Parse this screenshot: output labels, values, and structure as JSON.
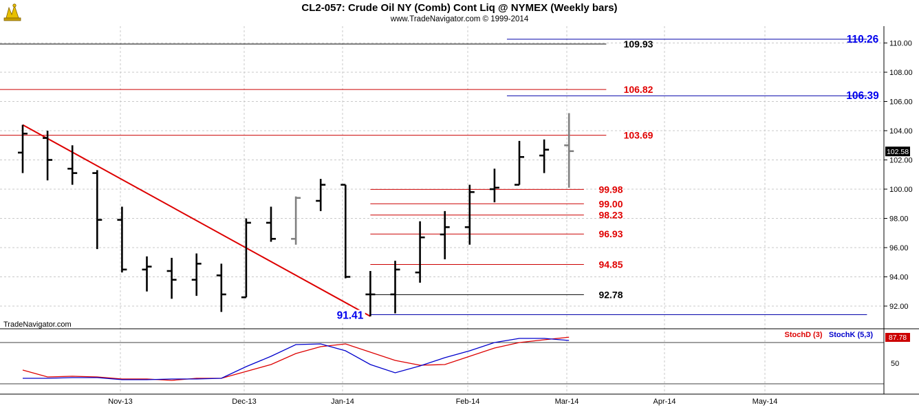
{
  "header": {
    "title": "CL2-057:  Crude Oil NY (Comb) Cont Liq @ NYMEX  (Weekly bars)",
    "subtitle": "www.TradeNavigator.com © 1999-2014",
    "watermark": "TradeNavigator.com"
  },
  "colors": {
    "bar": "#000000",
    "bar_current": "#808080",
    "fib_red": "#cc0000",
    "fib_label_red": "#e00000",
    "fib_black": "#000000",
    "fib_blue": "#0000aa",
    "label_blue": "#0000ee",
    "trendline": "#dd0000",
    "grid": "#c8c8c8",
    "stochD": "#dd0000",
    "stochK": "#0000cc",
    "last_price_bg": "#000000",
    "last_price_fg": "#ffffff"
  },
  "chart_data": [
    {
      "type": "ohlc",
      "bar_interval": "weekly",
      "x_categories": [
        "Nov-13",
        "Dec-13",
        "Jan-14",
        "Feb-14",
        "Mar-14",
        "Apr-14",
        "May-14"
      ],
      "y_ticks": [
        "92.00",
        "94.00",
        "96.00",
        "98.00",
        "100.00",
        "102.00",
        "104.00",
        "106.00",
        "108.00",
        "110.00"
      ],
      "ylim": [
        90.6,
        111.8
      ],
      "grid": true,
      "last_price": "102.58",
      "bars": [
        {
          "week": 0,
          "open": 102.5,
          "high": 104.4,
          "low": 101.1,
          "close": 103.8
        },
        {
          "week": 1,
          "open": 103.5,
          "high": 104.0,
          "low": 100.6,
          "close": 102.0
        },
        {
          "week": 2,
          "open": 101.4,
          "high": 103.0,
          "low": 100.3,
          "close": 101.1
        },
        {
          "week": 3,
          "open": 101.1,
          "high": 101.3,
          "low": 95.9,
          "close": 97.9
        },
        {
          "week": 4,
          "open": 97.9,
          "high": 98.8,
          "low": 94.3,
          "close": 94.5
        },
        {
          "week": 5,
          "open": 94.5,
          "high": 95.4,
          "low": 93.0,
          "close": 94.7
        },
        {
          "week": 6,
          "open": 94.4,
          "high": 95.3,
          "low": 92.5,
          "close": 93.8
        },
        {
          "week": 7,
          "open": 93.8,
          "high": 95.6,
          "low": 92.7,
          "close": 94.9
        },
        {
          "week": 8,
          "open": 94.1,
          "high": 94.9,
          "low": 91.6,
          "close": 92.8
        },
        {
          "week": 9,
          "open": 92.6,
          "high": 98.0,
          "low": 92.6,
          "close": 97.7
        },
        {
          "week": 10,
          "open": 97.7,
          "high": 98.8,
          "low": 96.4,
          "close": 96.6
        },
        {
          "week": 11,
          "open": 96.6,
          "high": 99.5,
          "low": 96.2,
          "close": 99.4,
          "current": true
        },
        {
          "week": 12,
          "open": 99.2,
          "high": 100.7,
          "low": 98.5,
          "close": 100.3
        },
        {
          "week": 13,
          "open": 100.3,
          "high": 100.3,
          "low": 93.9,
          "close": 94.0
        },
        {
          "week": 14,
          "open": 92.8,
          "high": 94.4,
          "low": 91.3,
          "close": 92.8
        },
        {
          "week": 15,
          "open": 92.8,
          "high": 95.1,
          "low": 91.5,
          "close": 94.5
        },
        {
          "week": 16,
          "open": 94.3,
          "high": 97.8,
          "low": 93.6,
          "close": 96.7
        },
        {
          "week": 17,
          "open": 96.9,
          "high": 98.5,
          "low": 95.2,
          "close": 97.4
        },
        {
          "week": 18,
          "open": 97.4,
          "high": 100.3,
          "low": 96.2,
          "close": 99.8
        },
        {
          "week": 19,
          "open": 100.0,
          "high": 101.4,
          "low": 99.1,
          "close": 100.1
        },
        {
          "week": 20,
          "open": 100.3,
          "high": 103.3,
          "low": 100.3,
          "close": 102.2
        },
        {
          "week": 21,
          "open": 102.3,
          "high": 103.4,
          "low": 101.1,
          "close": 102.7
        },
        {
          "week": 22,
          "open": 103.0,
          "high": 105.2,
          "low": 100.1,
          "close": 102.6,
          "current": true
        }
      ],
      "levels": [
        {
          "value": 109.93,
          "label": "109.93",
          "color": "black",
          "from_week": -1.5,
          "to_week": 23.5
        },
        {
          "value": 106.82,
          "label": "106.82",
          "color": "red",
          "from_week": -1.5,
          "to_week": 23.5
        },
        {
          "value": 103.69,
          "label": "103.69",
          "color": "red",
          "from_week": -1.5,
          "to_week": 23.5
        },
        {
          "value": 110.26,
          "label": "110.26",
          "color": "blue",
          "from_week": 19.5,
          "to_week": 34
        },
        {
          "value": 106.39,
          "label": "106.39",
          "color": "blue",
          "from_week": 19.5,
          "to_week": 34
        },
        {
          "value": 99.98,
          "label": "99.98",
          "color": "red",
          "from_week": 14,
          "to_week": 22.6
        },
        {
          "value": 99.0,
          "label": "99.00",
          "color": "red",
          "from_week": 14,
          "to_week": 22.6
        },
        {
          "value": 98.23,
          "label": "98.23",
          "color": "red",
          "from_week": 14,
          "to_week": 22.6
        },
        {
          "value": 96.93,
          "label": "96.93",
          "color": "red",
          "from_week": 14,
          "to_week": 22.6
        },
        {
          "value": 94.85,
          "label": "94.85",
          "color": "red",
          "from_week": 14,
          "to_week": 22.6
        },
        {
          "value": 92.78,
          "label": "92.78",
          "color": "black",
          "from_week": 14,
          "to_week": 22.6
        },
        {
          "value": 91.41,
          "label": "91.41",
          "color": "blue",
          "from_week": 14,
          "to_week": 34
        }
      ],
      "trendline": {
        "from": {
          "week": 0,
          "value": 104.4
        },
        "to": {
          "week": 14,
          "value": 91.3
        }
      }
    },
    {
      "type": "line",
      "indicator": "stochastic",
      "series": [
        {
          "name": "StochD (3)",
          "values": [
            40,
            30,
            31,
            30,
            27,
            27,
            25,
            28,
            28,
            38,
            48,
            64,
            74,
            78,
            66,
            54,
            47,
            48,
            60,
            72,
            80,
            84,
            87.78
          ]
        },
        {
          "name": "StochK (5,3)",
          "values": [
            28,
            28,
            29,
            29,
            26,
            26,
            27,
            27,
            28,
            45,
            60,
            77,
            78,
            68,
            48,
            36,
            46,
            58,
            68,
            80,
            86,
            86,
            83
          ]
        }
      ],
      "last_value": "87.78",
      "y_tick": "50",
      "reference_lines": [
        80,
        20
      ]
    }
  ]
}
